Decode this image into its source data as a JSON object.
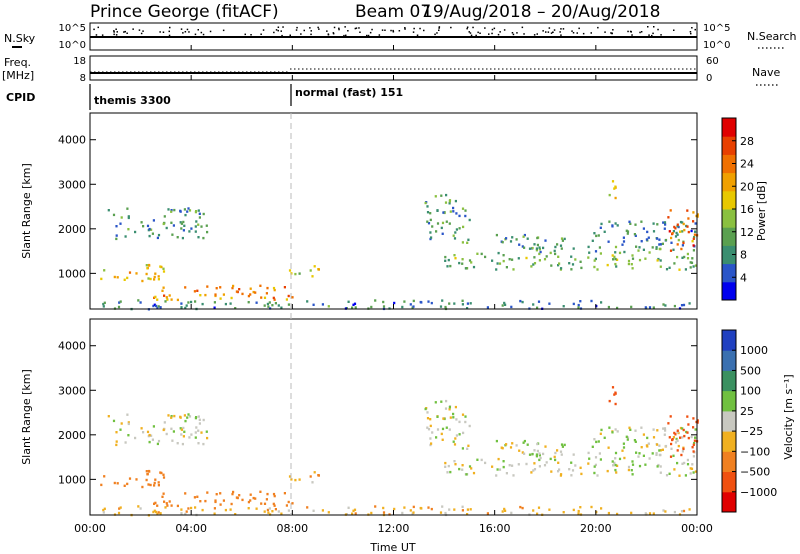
{
  "header": {
    "station": "Prince George (fitACF)",
    "beam": "Beam 07",
    "dates": "19/Aug/2018 – 20/Aug/2018"
  },
  "top_panels": {
    "nsky_label": "N.Sky",
    "nsky_ticks": [
      "10^5",
      "10^0"
    ],
    "nsearch_label": "N.Search",
    "nsearch_ticks": [
      "10^5",
      "10^0"
    ],
    "freq_label_1": "Freq.",
    "freq_label_2": "[MHz]",
    "freq_ticks": [
      "18",
      "8"
    ],
    "nave_label": "Nave",
    "nave_ticks": [
      "60",
      "0"
    ],
    "cpid_label": "CPID",
    "cpid_segments": [
      "themis 3300",
      "normal (fast) 151"
    ]
  },
  "power_colorbar": {
    "label": "Power [dB]",
    "ticks": [
      "4",
      "8",
      "12",
      "16",
      "20",
      "24",
      "28"
    ],
    "colors": [
      "#0000ee",
      "#2a55c8",
      "#3a8e70",
      "#5aa050",
      "#8ac040",
      "#e8c800",
      "#f0a000",
      "#f07000",
      "#e84000",
      "#e00000"
    ]
  },
  "velocity_colorbar": {
    "label": "Velocity [m s⁻¹]",
    "ticks": [
      "1000",
      "500",
      "100",
      "25",
      "−25",
      "−100",
      "−500",
      "−1000"
    ],
    "colors": [
      "#2040c0",
      "#3a70b0",
      "#3a9060",
      "#70c040",
      "#c8c8c0",
      "#f0b020",
      "#f08020",
      "#f05010",
      "#e00000"
    ]
  },
  "chart_data": {
    "type": "heatmap",
    "xlabel": "Time UT",
    "ylabel": "Slant Range [km]",
    "xticks": [
      "00:00",
      "04:00",
      "08:00",
      "12:00",
      "16:00",
      "20:00",
      "00:00"
    ],
    "yticks": [
      "1000",
      "2000",
      "3000",
      "4000"
    ],
    "xlim": [
      0,
      24
    ],
    "ylim": [
      200,
      4600
    ],
    "cpid_change_hour": 8,
    "scatter_bands": [
      {
        "t0": 0.7,
        "t1": 4.6,
        "r0": 1800,
        "r1": 2500,
        "power": 10,
        "vel": 0
      },
      {
        "t0": 0.4,
        "t1": 3.0,
        "r0": 850,
        "r1": 1250,
        "power": 18,
        "vel": -300
      },
      {
        "t0": 2.3,
        "t1": 8.0,
        "r0": 420,
        "r1": 760,
        "power": 22,
        "vel": -400
      },
      {
        "t0": 7.8,
        "t1": 9.2,
        "r0": 950,
        "r1": 1200,
        "power": 16,
        "vel": -80
      },
      {
        "t0": 13.2,
        "t1": 15.0,
        "r0": 1700,
        "r1": 2800,
        "power": 10,
        "vel": 0
      },
      {
        "t0": 14.0,
        "t1": 24.0,
        "r0": 1100,
        "r1": 1500,
        "power": 12,
        "vel": 0
      },
      {
        "t0": 16.0,
        "t1": 24.0,
        "r0": 1500,
        "r1": 1900,
        "power": 9,
        "vel": 0
      },
      {
        "t0": 19.5,
        "t1": 24.0,
        "r0": 1850,
        "r1": 2200,
        "power": 8,
        "vel": 0
      },
      {
        "t0": 22.8,
        "t1": 24.0,
        "r0": 1500,
        "r1": 2500,
        "power": 24,
        "vel": -900
      },
      {
        "t0": 20.5,
        "t1": 21.0,
        "r0": 2700,
        "r1": 3200,
        "power": 20,
        "vel": -900
      },
      {
        "t0": 0.0,
        "t1": 24.0,
        "r0": 220,
        "r1": 420,
        "power": 8,
        "vel": -60
      }
    ]
  }
}
